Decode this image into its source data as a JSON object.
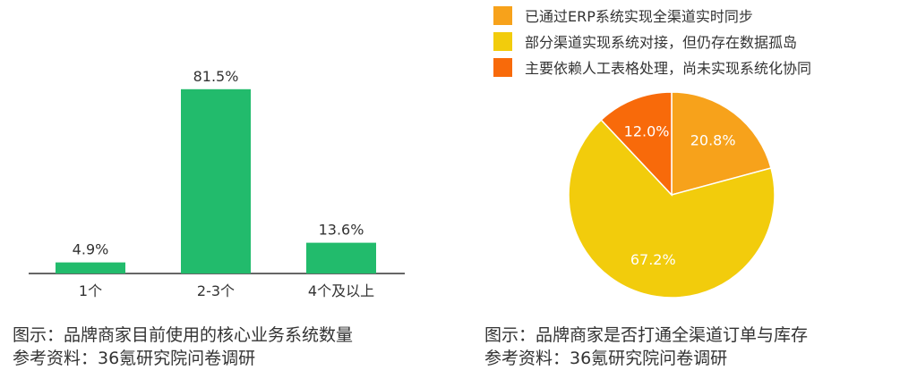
{
  "left_caption": {
    "line1": "图示：品牌商家目前使用的核心业务系统数量",
    "line2": "参考资料：36氪研究院问卷调研"
  },
  "right_caption": {
    "line1": "图示：品牌商家是否打通全渠道订单与库存",
    "line2": "参考资料：36氪研究院问卷调研"
  },
  "chart_data": [
    {
      "type": "bar",
      "categories": [
        "1个",
        "2-3个",
        "4个及以上"
      ],
      "values": [
        4.9,
        81.5,
        13.6
      ],
      "value_labels": [
        "4.9%",
        "81.5%",
        "13.6%"
      ],
      "unit": "%",
      "ylim": [
        0,
        100
      ],
      "grid": false,
      "color": "#22bb6c"
    },
    {
      "type": "pie",
      "legend_position": "top",
      "series": [
        {
          "name": "已通过ERP系统实现全渠道实时同步",
          "value": 20.8,
          "label": "20.8%",
          "color": "#f7a21b"
        },
        {
          "name": "部分渠道实现系统对接，但仍存在数据孤岛",
          "value": 67.2,
          "label": "67.2%",
          "color": "#f2cc0c"
        },
        {
          "name": "主要依赖人工表格处理，尚未实现系统化协同",
          "value": 12.0,
          "label": "12.0%",
          "color": "#f86a0a"
        }
      ]
    }
  ]
}
